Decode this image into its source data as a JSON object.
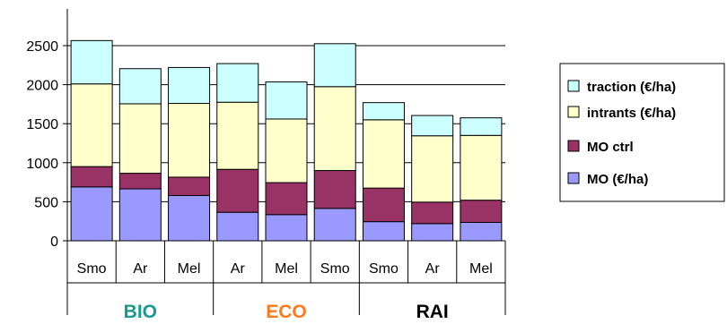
{
  "chart_data": {
    "type": "bar",
    "stacked": true,
    "ylim": [
      0,
      2500
    ],
    "yticks": [
      "0",
      "500",
      "1000",
      "1500",
      "2000",
      "2500"
    ],
    "grid": true,
    "legend_position": "right",
    "categories": [
      "Smo",
      "Ar",
      "Mel",
      "Ar",
      "Mel",
      "Smo",
      "Smo",
      "Ar",
      "Mel"
    ],
    "groups": [
      {
        "label": "BIO",
        "color": "#1a9a8e",
        "start": 0,
        "count": 3
      },
      {
        "label": "ECO",
        "color": "#ff7a1a",
        "start": 3,
        "count": 3
      },
      {
        "label": "RAI",
        "color": "#000000",
        "start": 6,
        "count": 3
      }
    ],
    "series": [
      {
        "name": "MO (€/ha)",
        "color": "#9999ff",
        "values": [
          690,
          665,
          580,
          365,
          335,
          415,
          245,
          220,
          235
        ]
      },
      {
        "name": "MO ctrl",
        "color": "#993366",
        "values": [
          260,
          200,
          235,
          550,
          410,
          485,
          430,
          275,
          285
        ]
      },
      {
        "name": "intrants (€/ha)",
        "color": "#ffffcc",
        "values": [
          1060,
          890,
          945,
          860,
          815,
          1075,
          875,
          850,
          830
        ]
      },
      {
        "name": "traction (€/ha)",
        "color": "#ccffff",
        "values": [
          555,
          450,
          460,
          495,
          475,
          550,
          220,
          260,
          225
        ]
      }
    ],
    "legend_order": [
      3,
      2,
      1,
      0
    ]
  }
}
